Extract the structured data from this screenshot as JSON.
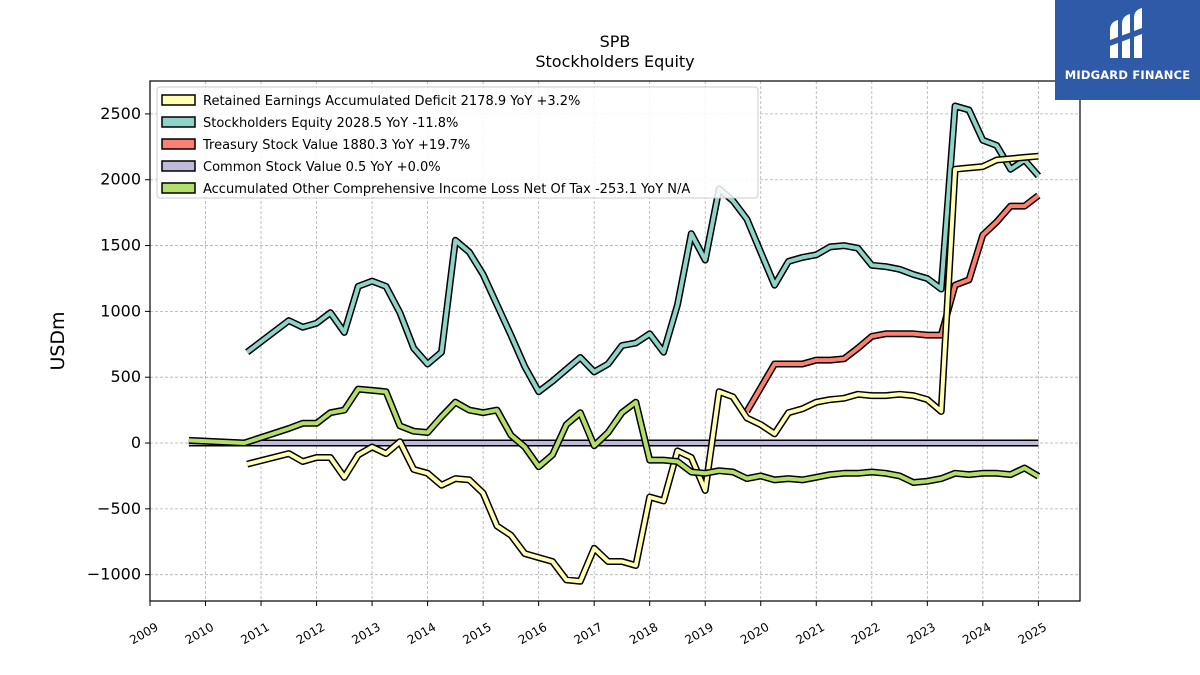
{
  "brand": {
    "name": "MIDGARD FINANCE",
    "color": "#2f5aa8"
  },
  "chart_data": {
    "type": "line",
    "title": "SPB",
    "subtitle": "Stockholders  Equity",
    "xlabel": "",
    "ylabel": "USDm",
    "xlim": [
      2009.0,
      2025.75
    ],
    "ylim": [
      -1200,
      2750
    ],
    "yticks": [
      -1000,
      -500,
      0,
      500,
      1000,
      1500,
      2000,
      2500
    ],
    "ytick_labels": [
      "−1000",
      "−500",
      "0",
      "500",
      "1000",
      "1500",
      "2000",
      "2500"
    ],
    "xticks": [
      2009,
      2010,
      2011,
      2012,
      2013,
      2014,
      2015,
      2016,
      2017,
      2018,
      2019,
      2020,
      2021,
      2022,
      2023,
      2024,
      2025
    ],
    "xtick_labels": [
      "2009",
      "2010",
      "2011",
      "2012",
      "2013",
      "2014",
      "2015",
      "2016",
      "2017",
      "2018",
      "2019",
      "2020",
      "2021",
      "2022",
      "2023",
      "2024",
      "2025"
    ],
    "grid": true,
    "legend_position": "top-left",
    "series": [
      {
        "name": "Stockholders Equity",
        "legend": "Stockholders Equity  2028.5 YoY -11.8%",
        "color": "#8dd3c7",
        "points": [
          [
            2010.75,
            690
          ],
          [
            2011.5,
            930
          ],
          [
            2011.75,
            880
          ],
          [
            2012.0,
            910
          ],
          [
            2012.25,
            990
          ],
          [
            2012.5,
            840
          ],
          [
            2012.75,
            1190
          ],
          [
            2013.0,
            1230
          ],
          [
            2013.25,
            1190
          ],
          [
            2013.5,
            990
          ],
          [
            2013.75,
            720
          ],
          [
            2014.0,
            600
          ],
          [
            2014.25,
            690
          ],
          [
            2014.5,
            1540
          ],
          [
            2014.75,
            1450
          ],
          [
            2015.0,
            1280
          ],
          [
            2015.25,
            1050
          ],
          [
            2015.5,
            820
          ],
          [
            2015.75,
            580
          ],
          [
            2016.0,
            390
          ],
          [
            2016.25,
            470
          ],
          [
            2016.5,
            560
          ],
          [
            2016.75,
            650
          ],
          [
            2017.0,
            540
          ],
          [
            2017.25,
            600
          ],
          [
            2017.5,
            740
          ],
          [
            2017.75,
            760
          ],
          [
            2018.0,
            830
          ],
          [
            2018.25,
            690
          ],
          [
            2018.5,
            1050
          ],
          [
            2018.75,
            1590
          ],
          [
            2019.0,
            1390
          ],
          [
            2019.25,
            1930
          ],
          [
            2019.5,
            1840
          ],
          [
            2019.75,
            1700
          ],
          [
            2020.0,
            1450
          ],
          [
            2020.25,
            1200
          ],
          [
            2020.5,
            1380
          ],
          [
            2020.75,
            1410
          ],
          [
            2021.0,
            1430
          ],
          [
            2021.25,
            1490
          ],
          [
            2021.5,
            1500
          ],
          [
            2021.75,
            1480
          ],
          [
            2022.0,
            1350
          ],
          [
            2022.25,
            1340
          ],
          [
            2022.5,
            1320
          ],
          [
            2022.75,
            1280
          ],
          [
            2023.0,
            1250
          ],
          [
            2023.25,
            1170
          ],
          [
            2023.5,
            2560
          ],
          [
            2023.75,
            2530
          ],
          [
            2024.0,
            2300
          ],
          [
            2024.25,
            2260
          ],
          [
            2024.5,
            2080
          ],
          [
            2024.75,
            2150
          ],
          [
            2025.0,
            2030
          ]
        ]
      },
      {
        "name": "Retained Earnings Accumulated Deficit",
        "legend": "Retained Earnings Accumulated Deficit  2178.9 YoY +3.2%",
        "color": "#ffffb3",
        "points": [
          [
            2010.75,
            -160
          ],
          [
            2011.5,
            -80
          ],
          [
            2011.75,
            -140
          ],
          [
            2012.0,
            -110
          ],
          [
            2012.25,
            -110
          ],
          [
            2012.5,
            -260
          ],
          [
            2012.75,
            -90
          ],
          [
            2013.0,
            -30
          ],
          [
            2013.25,
            -80
          ],
          [
            2013.5,
            10
          ],
          [
            2013.75,
            -200
          ],
          [
            2014.0,
            -230
          ],
          [
            2014.25,
            -320
          ],
          [
            2014.5,
            -270
          ],
          [
            2014.75,
            -280
          ],
          [
            2015.0,
            -380
          ],
          [
            2015.25,
            -630
          ],
          [
            2015.5,
            -700
          ],
          [
            2015.75,
            -840
          ],
          [
            2016.0,
            -870
          ],
          [
            2016.25,
            -900
          ],
          [
            2016.5,
            -1040
          ],
          [
            2016.75,
            -1050
          ],
          [
            2017.0,
            -800
          ],
          [
            2017.25,
            -900
          ],
          [
            2017.5,
            -900
          ],
          [
            2017.75,
            -930
          ],
          [
            2018.0,
            -410
          ],
          [
            2018.25,
            -440
          ],
          [
            2018.5,
            -60
          ],
          [
            2018.75,
            -110
          ],
          [
            2019.0,
            -360
          ],
          [
            2019.25,
            390
          ],
          [
            2019.5,
            350
          ],
          [
            2019.75,
            190
          ],
          [
            2020.0,
            140
          ],
          [
            2020.25,
            70
          ],
          [
            2020.5,
            230
          ],
          [
            2020.75,
            260
          ],
          [
            2021.0,
            310
          ],
          [
            2021.25,
            330
          ],
          [
            2021.5,
            340
          ],
          [
            2021.75,
            370
          ],
          [
            2022.0,
            360
          ],
          [
            2022.25,
            360
          ],
          [
            2022.5,
            370
          ],
          [
            2022.75,
            360
          ],
          [
            2023.0,
            330
          ],
          [
            2023.25,
            240
          ],
          [
            2023.5,
            2080
          ],
          [
            2023.75,
            2090
          ],
          [
            2024.0,
            2100
          ],
          [
            2024.25,
            2150
          ],
          [
            2024.5,
            2160
          ],
          [
            2024.75,
            2170
          ],
          [
            2025.0,
            2179
          ]
        ]
      },
      {
        "name": "Treasury Stock Value",
        "legend": "Treasury Stock Value  1880.3 YoY +19.7%",
        "color": "#fb8072",
        "points": [
          [
            2019.75,
            240
          ],
          [
            2020.25,
            600
          ],
          [
            2020.5,
            600
          ],
          [
            2020.75,
            600
          ],
          [
            2021.0,
            630
          ],
          [
            2021.25,
            630
          ],
          [
            2021.5,
            640
          ],
          [
            2021.75,
            720
          ],
          [
            2022.0,
            810
          ],
          [
            2022.25,
            830
          ],
          [
            2022.5,
            830
          ],
          [
            2022.75,
            830
          ],
          [
            2023.0,
            820
          ],
          [
            2023.25,
            820
          ],
          [
            2023.5,
            1200
          ],
          [
            2023.75,
            1240
          ],
          [
            2024.0,
            1580
          ],
          [
            2024.25,
            1680
          ],
          [
            2024.5,
            1800
          ],
          [
            2024.75,
            1800
          ],
          [
            2025.0,
            1880
          ]
        ]
      },
      {
        "name": "Common Stock Value",
        "legend": "Common Stock Value  0.5 YoY +0.0%",
        "color": "#bebada",
        "points": [
          [
            2009.7,
            0.5
          ],
          [
            2025.0,
            0.5
          ]
        ]
      },
      {
        "name": "Accumulated Other Comprehensive Income Loss Net Of Tax",
        "legend": "Accumulated Other Comprehensive Income Loss Net Of Tax  -253.1 YoY N/A",
        "color": "#b3de69",
        "points": [
          [
            2009.7,
            20
          ],
          [
            2010.7,
            0
          ],
          [
            2011.5,
            110
          ],
          [
            2011.75,
            150
          ],
          [
            2012.0,
            150
          ],
          [
            2012.25,
            230
          ],
          [
            2012.5,
            250
          ],
          [
            2012.75,
            410
          ],
          [
            2013.0,
            400
          ],
          [
            2013.25,
            390
          ],
          [
            2013.5,
            130
          ],
          [
            2013.75,
            90
          ],
          [
            2014.0,
            80
          ],
          [
            2014.25,
            200
          ],
          [
            2014.5,
            310
          ],
          [
            2014.75,
            250
          ],
          [
            2015.0,
            230
          ],
          [
            2015.25,
            250
          ],
          [
            2015.5,
            60
          ],
          [
            2015.75,
            -30
          ],
          [
            2016.0,
            -180
          ],
          [
            2016.25,
            -90
          ],
          [
            2016.5,
            140
          ],
          [
            2016.75,
            230
          ],
          [
            2017.0,
            -20
          ],
          [
            2017.25,
            80
          ],
          [
            2017.5,
            230
          ],
          [
            2017.75,
            310
          ],
          [
            2018.0,
            -130
          ],
          [
            2018.25,
            -130
          ],
          [
            2018.5,
            -140
          ],
          [
            2018.75,
            -220
          ],
          [
            2019.0,
            -230
          ],
          [
            2019.25,
            -210
          ],
          [
            2019.5,
            -220
          ],
          [
            2019.75,
            -270
          ],
          [
            2020.0,
            -250
          ],
          [
            2020.25,
            -280
          ],
          [
            2020.5,
            -270
          ],
          [
            2020.75,
            -280
          ],
          [
            2021.0,
            -260
          ],
          [
            2021.25,
            -240
          ],
          [
            2021.5,
            -230
          ],
          [
            2021.75,
            -230
          ],
          [
            2022.0,
            -220
          ],
          [
            2022.25,
            -230
          ],
          [
            2022.5,
            -250
          ],
          [
            2022.75,
            -300
          ],
          [
            2023.0,
            -290
          ],
          [
            2023.25,
            -270
          ],
          [
            2023.5,
            -230
          ],
          [
            2023.75,
            -240
          ],
          [
            2024.0,
            -230
          ],
          [
            2024.25,
            -230
          ],
          [
            2024.5,
            -240
          ],
          [
            2024.75,
            -190
          ],
          [
            2025.0,
            -253
          ]
        ]
      }
    ],
    "legend_order": [
      "Retained Earnings Accumulated Deficit",
      "Stockholders Equity",
      "Treasury Stock Value",
      "Common Stock Value",
      "Accumulated Other Comprehensive Income Loss Net Of Tax"
    ]
  }
}
